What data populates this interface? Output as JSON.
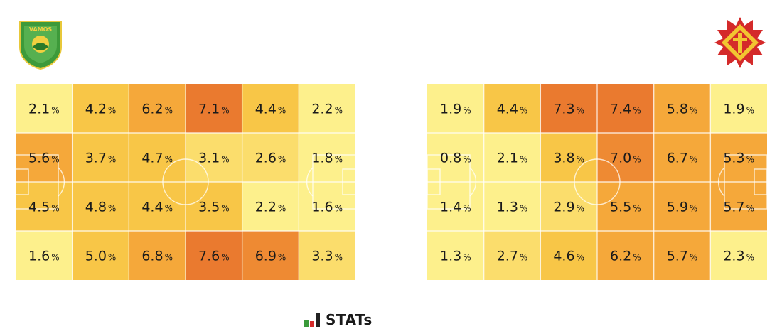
{
  "brand": {
    "name": "STATs",
    "icon": "stats-logo-icon",
    "colors": [
      "#3a9a3a",
      "#d42a2a",
      "#222222"
    ]
  },
  "teams": [
    {
      "side": "left",
      "logo_icon": "team-crest-green-shield-icon",
      "logo_text": "VAMOS",
      "color": "#3d9a3a"
    },
    {
      "side": "right",
      "logo_icon": "team-crest-red-yellow-star-icon",
      "color": "#d42a2a"
    }
  ],
  "color_scale": [
    "#fdf08c",
    "#fbdd6c",
    "#f8c647",
    "#f5a83a",
    "#ee8a33",
    "#ea7a2f"
  ],
  "chart_data": [
    {
      "type": "heatmap",
      "name": "",
      "unit": "%",
      "rows": 4,
      "cols": 6,
      "values": [
        [
          2.1,
          4.2,
          6.2,
          7.1,
          4.4,
          2.2
        ],
        [
          5.6,
          3.7,
          4.7,
          3.1,
          2.6,
          1.8
        ],
        [
          4.5,
          4.8,
          4.4,
          3.5,
          2.2,
          1.6
        ],
        [
          1.6,
          5.0,
          6.8,
          7.6,
          6.9,
          3.3
        ]
      ]
    },
    {
      "type": "heatmap",
      "name": "",
      "unit": "%",
      "rows": 4,
      "cols": 6,
      "values": [
        [
          1.9,
          4.4,
          7.3,
          7.4,
          5.8,
          1.9
        ],
        [
          0.8,
          2.1,
          3.8,
          7.0,
          6.7,
          5.3
        ],
        [
          1.4,
          1.3,
          2.9,
          5.5,
          5.9,
          5.7
        ],
        [
          1.3,
          2.7,
          4.6,
          6.2,
          5.7,
          2.3
        ]
      ]
    }
  ]
}
